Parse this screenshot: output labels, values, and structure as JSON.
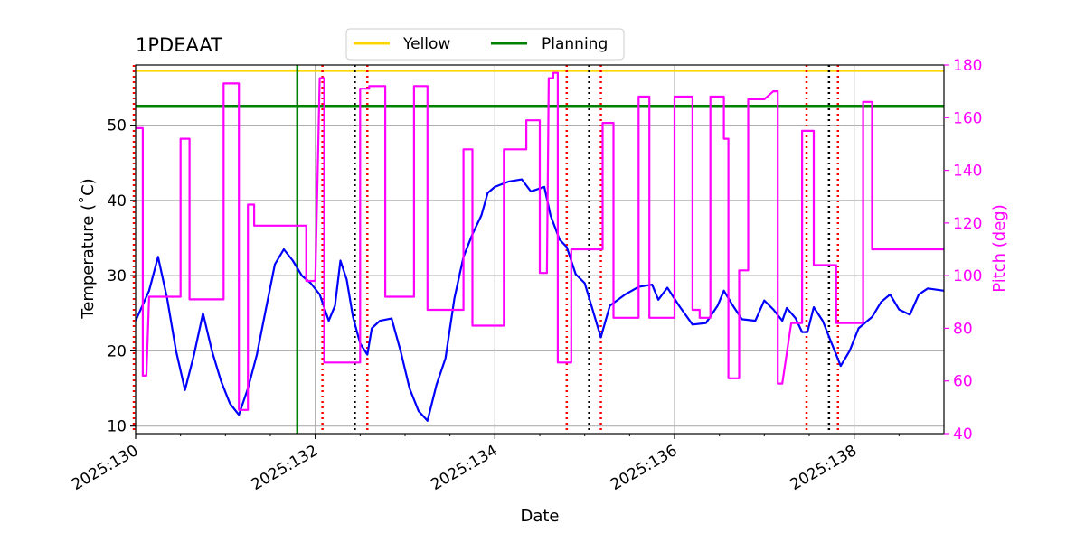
{
  "chart_data": {
    "type": "line",
    "title": "1PDEAAT",
    "xlabel": "Date",
    "ylabel": "Temperature ($^\\circ$C)",
    "ylabel_display": "Temperature (˚C)",
    "y2label": "Pitch (deg)",
    "xlim": [
      130.0,
      139.0
    ],
    "ylim": [
      9,
      58
    ],
    "y2lim": [
      40,
      180
    ],
    "x_ticks": [
      130,
      132,
      134,
      136,
      138
    ],
    "x_tick_labels": [
      "2025:130",
      "2025:132",
      "2025:134",
      "2025:136",
      "2025:138"
    ],
    "y_ticks": [
      10,
      20,
      30,
      40,
      50
    ],
    "y_tick_labels": [
      "10",
      "20",
      "30",
      "40",
      "50"
    ],
    "y2_ticks": [
      40,
      60,
      80,
      100,
      120,
      140,
      160,
      180
    ],
    "y2_tick_labels": [
      "40",
      "60",
      "80",
      "100",
      "120",
      "140",
      "160",
      "180"
    ],
    "grid": true,
    "legend_position": "top-center",
    "legend": [
      {
        "label": "Yellow",
        "color": "#ffd700"
      },
      {
        "label": "Planning",
        "color": "#008000"
      }
    ],
    "limits": {
      "yellow": 57.2,
      "planning": 52.5
    },
    "colors": {
      "temperature": "#0000ff",
      "pitch": "#ff00ff",
      "yellow": "#ffd700",
      "planning": "#008000",
      "red_vlines": "#ff0000",
      "black_vlines": "#000000",
      "green_vline": "#008000"
    },
    "green_vline": 131.8,
    "red_vlines": [
      129.98,
      132.08,
      132.58,
      134.8,
      135.18,
      137.47,
      137.82
    ],
    "black_vlines": [
      132.44,
      135.05,
      137.72
    ],
    "series": [
      {
        "name": "Temperature",
        "axis": "left",
        "points": [
          [
            130.0,
            24.0
          ],
          [
            130.15,
            28.0
          ],
          [
            130.25,
            32.5
          ],
          [
            130.35,
            27.0
          ],
          [
            130.45,
            20.0
          ],
          [
            130.55,
            14.8
          ],
          [
            130.65,
            19.5
          ],
          [
            130.75,
            25.0
          ],
          [
            130.85,
            20.0
          ],
          [
            130.95,
            16.0
          ],
          [
            131.05,
            13.0
          ],
          [
            131.15,
            11.5
          ],
          [
            131.25,
            15.0
          ],
          [
            131.35,
            19.5
          ],
          [
            131.45,
            25.5
          ],
          [
            131.55,
            31.5
          ],
          [
            131.65,
            33.5
          ],
          [
            131.75,
            32.0
          ],
          [
            131.85,
            30.0
          ],
          [
            131.95,
            29.0
          ],
          [
            132.05,
            27.5
          ],
          [
            132.15,
            24.0
          ],
          [
            132.22,
            26.0
          ],
          [
            132.28,
            32.0
          ],
          [
            132.35,
            29.5
          ],
          [
            132.42,
            24.5
          ],
          [
            132.5,
            21.0
          ],
          [
            132.58,
            19.5
          ],
          [
            132.63,
            23.0
          ],
          [
            132.72,
            24.0
          ],
          [
            132.85,
            24.3
          ],
          [
            132.95,
            20.0
          ],
          [
            133.05,
            15.0
          ],
          [
            133.15,
            12.0
          ],
          [
            133.25,
            10.7
          ],
          [
            133.35,
            15.5
          ],
          [
            133.45,
            19.0
          ],
          [
            133.55,
            27.0
          ],
          [
            133.65,
            32.5
          ],
          [
            133.75,
            35.5
          ],
          [
            133.85,
            38.0
          ],
          [
            133.92,
            41.0
          ],
          [
            134.0,
            41.8
          ],
          [
            134.15,
            42.5
          ],
          [
            134.3,
            42.8
          ],
          [
            134.4,
            41.2
          ],
          [
            134.55,
            41.8
          ],
          [
            134.62,
            38.0
          ],
          [
            134.72,
            34.8
          ],
          [
            134.8,
            33.8
          ],
          [
            134.9,
            30.2
          ],
          [
            135.0,
            29.0
          ],
          [
            135.1,
            25.0
          ],
          [
            135.18,
            21.8
          ],
          [
            135.28,
            26.0
          ],
          [
            135.45,
            27.5
          ],
          [
            135.6,
            28.5
          ],
          [
            135.75,
            28.8
          ],
          [
            135.82,
            26.8
          ],
          [
            135.92,
            28.4
          ],
          [
            136.05,
            26.0
          ],
          [
            136.2,
            23.5
          ],
          [
            136.35,
            23.7
          ],
          [
            136.48,
            26.0
          ],
          [
            136.55,
            28.0
          ],
          [
            136.65,
            26.0
          ],
          [
            136.75,
            24.2
          ],
          [
            136.9,
            24.0
          ],
          [
            137.0,
            26.7
          ],
          [
            137.1,
            25.5
          ],
          [
            137.2,
            24.0
          ],
          [
            137.25,
            25.7
          ],
          [
            137.35,
            24.3
          ],
          [
            137.42,
            22.5
          ],
          [
            137.48,
            22.5
          ],
          [
            137.55,
            25.8
          ],
          [
            137.65,
            24.0
          ],
          [
            137.75,
            21.0
          ],
          [
            137.85,
            18.0
          ],
          [
            137.95,
            20.0
          ],
          [
            138.05,
            23.0
          ],
          [
            138.2,
            24.5
          ],
          [
            138.3,
            26.5
          ],
          [
            138.4,
            27.5
          ],
          [
            138.5,
            25.5
          ],
          [
            138.62,
            24.8
          ],
          [
            138.72,
            27.5
          ],
          [
            138.82,
            28.3
          ],
          [
            139.0,
            28.0
          ]
        ]
      },
      {
        "name": "Pitch",
        "axis": "right",
        "points": [
          [
            130.0,
            156
          ],
          [
            130.08,
            156
          ],
          [
            130.08,
            62
          ],
          [
            130.12,
            62
          ],
          [
            130.15,
            92
          ],
          [
            130.3,
            92
          ],
          [
            130.5,
            92
          ],
          [
            130.5,
            152
          ],
          [
            130.6,
            152
          ],
          [
            130.6,
            91
          ],
          [
            130.8,
            91
          ],
          [
            130.98,
            91
          ],
          [
            130.98,
            173
          ],
          [
            131.15,
            173
          ],
          [
            131.15,
            49
          ],
          [
            131.25,
            49
          ],
          [
            131.25,
            127
          ],
          [
            131.32,
            127
          ],
          [
            131.32,
            119
          ],
          [
            131.42,
            119
          ],
          [
            131.6,
            119
          ],
          [
            131.9,
            119
          ],
          [
            131.9,
            98
          ],
          [
            132.0,
            98
          ],
          [
            132.05,
            175
          ],
          [
            132.1,
            175
          ],
          [
            132.1,
            67
          ],
          [
            132.2,
            67
          ],
          [
            132.25,
            67
          ],
          [
            132.5,
            67
          ],
          [
            132.5,
            171
          ],
          [
            132.6,
            171
          ],
          [
            132.6,
            172
          ],
          [
            132.78,
            172
          ],
          [
            132.78,
            92
          ],
          [
            132.92,
            92
          ],
          [
            133.1,
            92
          ],
          [
            133.1,
            172
          ],
          [
            133.25,
            172
          ],
          [
            133.25,
            87
          ],
          [
            133.45,
            87
          ],
          [
            133.65,
            87
          ],
          [
            133.65,
            148
          ],
          [
            133.75,
            148
          ],
          [
            133.75,
            81
          ],
          [
            133.95,
            81
          ],
          [
            134.1,
            81
          ],
          [
            134.1,
            148
          ],
          [
            134.2,
            148
          ],
          [
            134.35,
            148
          ],
          [
            134.35,
            159
          ],
          [
            134.5,
            159
          ],
          [
            134.5,
            101
          ],
          [
            134.58,
            101
          ],
          [
            134.6,
            175
          ],
          [
            134.65,
            175
          ],
          [
            134.65,
            177
          ],
          [
            134.7,
            177
          ],
          [
            134.7,
            67
          ],
          [
            134.85,
            67
          ],
          [
            134.85,
            110
          ],
          [
            135.0,
            110
          ],
          [
            135.2,
            110
          ],
          [
            135.2,
            158
          ],
          [
            135.32,
            158
          ],
          [
            135.32,
            84
          ],
          [
            135.45,
            84
          ],
          [
            135.6,
            84
          ],
          [
            135.6,
            168
          ],
          [
            135.72,
            168
          ],
          [
            135.72,
            84
          ],
          [
            135.85,
            84
          ],
          [
            136.0,
            84
          ],
          [
            136.0,
            168
          ],
          [
            136.2,
            168
          ],
          [
            136.2,
            87
          ],
          [
            136.28,
            87
          ],
          [
            136.28,
            84
          ],
          [
            136.35,
            84
          ],
          [
            136.4,
            84
          ],
          [
            136.4,
            168
          ],
          [
            136.55,
            168
          ],
          [
            136.55,
            152
          ],
          [
            136.6,
            152
          ],
          [
            136.6,
            61
          ],
          [
            136.7,
            61
          ],
          [
            136.72,
            61
          ],
          [
            136.72,
            102
          ],
          [
            136.82,
            102
          ],
          [
            136.82,
            167
          ],
          [
            136.9,
            167
          ],
          [
            137.0,
            167
          ],
          [
            137.1,
            170
          ],
          [
            137.15,
            170
          ],
          [
            137.15,
            59
          ],
          [
            137.2,
            59
          ],
          [
            137.3,
            82
          ],
          [
            137.4,
            82
          ],
          [
            137.42,
            82
          ],
          [
            137.42,
            155
          ],
          [
            137.55,
            155
          ],
          [
            137.55,
            104
          ],
          [
            137.65,
            104
          ],
          [
            137.8,
            104
          ],
          [
            137.8,
            82
          ],
          [
            137.95,
            82
          ],
          [
            138.1,
            82
          ],
          [
            138.1,
            166
          ],
          [
            138.2,
            166
          ],
          [
            138.2,
            110
          ],
          [
            138.35,
            110
          ],
          [
            138.5,
            110
          ],
          [
            138.7,
            110
          ],
          [
            138.85,
            110
          ],
          [
            139.0,
            110
          ]
        ]
      }
    ]
  }
}
